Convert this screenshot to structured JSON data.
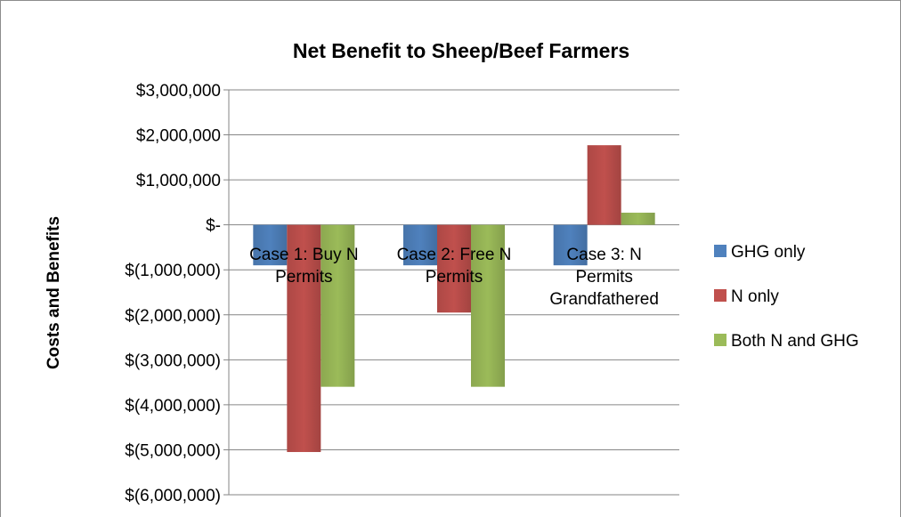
{
  "chart_data": {
    "type": "bar",
    "title": "Net Benefit to Sheep/Beef Farmers",
    "xlabel": "",
    "ylabel": "Costs and Benefits",
    "ylim": [
      -6000000,
      3000000
    ],
    "y_tick_values": [
      3000000,
      2000000,
      1000000,
      0,
      -1000000,
      -2000000,
      -3000000,
      -4000000,
      -5000000,
      -6000000
    ],
    "y_tick_labels": [
      "$3,000,000",
      "$2,000,000",
      "$1,000,000",
      "$-",
      "$(1,000,000)",
      "$(2,000,000)",
      "$(3,000,000)",
      "$(4,000,000)",
      "$(5,000,000)",
      "$(6,000,000)"
    ],
    "categories": [
      [
        "Case 1: Buy N",
        "Permits"
      ],
      [
        "Case 2: Free N",
        "Permits"
      ],
      [
        "Case 3: N",
        "Permits",
        "Grandfathered"
      ]
    ],
    "series": [
      {
        "name": "GHG only",
        "color": "#4F81BD",
        "values": [
          -900000,
          -900000,
          -900000
        ]
      },
      {
        "name": "N only",
        "color": "#C0504D",
        "values": [
          -5050000,
          -1950000,
          1770000
        ]
      },
      {
        "name": "Both N and GHG",
        "color": "#9BBB59",
        "values": [
          -3600000,
          -3600000,
          270000
        ]
      }
    ],
    "grid": true,
    "legend_position": "right"
  }
}
